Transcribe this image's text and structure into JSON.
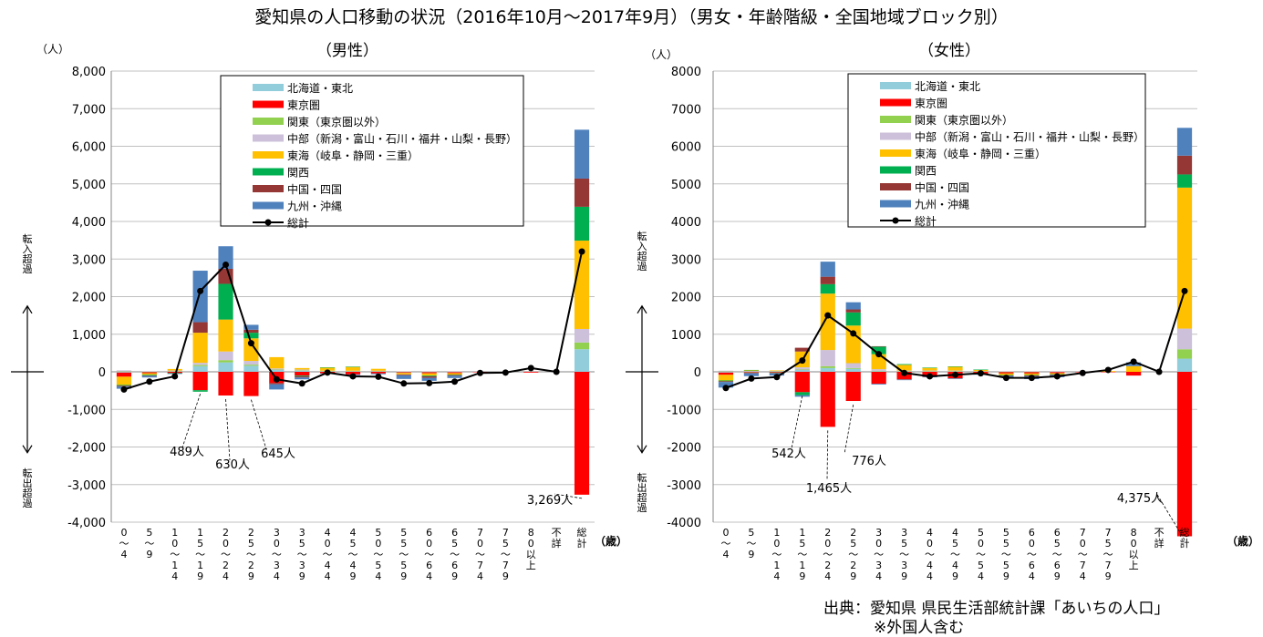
{
  "title": "愛知県の人口移動の状況（2016年10月～2017年9月）（男女・年齢階級・全国地域ブロック別）",
  "source_line1": "出典：愛知県 県民生活部統計課「あいちの人口」",
  "source_line2": "※外国人含む",
  "colors": {
    "hokkaido_tohoku": "#92cddc",
    "tokyo": "#ff0000",
    "kanto": "#92d050",
    "chubu": "#ccc0da",
    "tokai": "#ffc000",
    "kansai": "#00b050",
    "chugoku_shikoku": "#953735",
    "kyushu_okinawa": "#4f81bd",
    "total_line": "#000000"
  },
  "chart_data": [
    {
      "type": "bar",
      "stacked": true,
      "subtitle": "（男性）",
      "ylabel_unit": "（人）",
      "xlabel_unit": "（歳）",
      "in_label": "転入超過",
      "out_label": "転出超過",
      "ylim": [
        -4000,
        8000
      ],
      "ytick_labels": [
        "-4,000",
        "-3,000",
        "-2,000",
        "-1,000",
        "0",
        "1,000",
        "2,000",
        "3,000",
        "4,000",
        "5,000",
        "6,000",
        "7,000",
        "8,000"
      ],
      "categories": [
        "0～4",
        "5～9",
        "10～14",
        "15～19",
        "20～24",
        "25～29",
        "30～34",
        "35～39",
        "40～44",
        "45～49",
        "50～54",
        "55～59",
        "60～64",
        "65～69",
        "70～74",
        "75～79",
        "80以上",
        "不詳",
        "総計"
      ],
      "series": [
        {
          "name": "北海道・東北",
          "key": "hokkaido_tohoku",
          "values": [
            -20,
            -10,
            5,
            150,
            250,
            160,
            50,
            30,
            10,
            10,
            10,
            -10,
            -10,
            -10,
            0,
            0,
            0,
            0,
            600
          ]
        },
        {
          "name": "東京圏",
          "key": "tokyo",
          "values": [
            -110,
            -30,
            -25,
            -489,
            -630,
            -645,
            -300,
            -100,
            -40,
            -70,
            -40,
            -20,
            -30,
            -25,
            -5,
            -5,
            -20,
            0,
            -3269
          ]
        },
        {
          "name": "関東（東京圏以外）",
          "key": "kanto",
          "values": [
            10,
            5,
            10,
            30,
            60,
            30,
            10,
            10,
            10,
            10,
            10,
            10,
            10,
            0,
            0,
            0,
            0,
            0,
            180
          ]
        },
        {
          "name": "中部（新潟・富山・石川・福井・山梨・長野）",
          "key": "chubu",
          "values": [
            30,
            10,
            20,
            60,
            230,
            100,
            30,
            20,
            10,
            10,
            10,
            5,
            5,
            5,
            0,
            0,
            0,
            0,
            360
          ]
        },
        {
          "name": "東海（岐阜・静岡・三重）",
          "key": "tokai",
          "values": [
            -220,
            -40,
            40,
            800,
            850,
            600,
            300,
            40,
            80,
            100,
            50,
            -40,
            -60,
            -40,
            0,
            0,
            0,
            0,
            2350
          ]
        },
        {
          "name": "関西",
          "key": "kansai",
          "values": [
            -20,
            -20,
            -10,
            -40,
            950,
            150,
            0,
            -20,
            10,
            10,
            0,
            0,
            -20,
            -10,
            0,
            0,
            0,
            0,
            900
          ]
        },
        {
          "name": "中国・四国",
          "key": "chugoku_shikoku",
          "values": [
            -20,
            -10,
            -10,
            280,
            400,
            80,
            -30,
            -30,
            0,
            0,
            -5,
            -20,
            -40,
            -20,
            0,
            0,
            0,
            0,
            750
          ]
        },
        {
          "name": "九州・沖縄",
          "key": "kyushu_okinawa",
          "values": [
            -60,
            -40,
            -10,
            1370,
            600,
            130,
            -140,
            -50,
            -10,
            -20,
            -20,
            -100,
            -80,
            -60,
            0,
            0,
            0,
            0,
            1300
          ]
        }
      ],
      "total": {
        "name": "総計",
        "values": [
          -470,
          -260,
          -120,
          2150,
          2850,
          760,
          -200,
          -310,
          -20,
          -120,
          -130,
          -310,
          -300,
          -260,
          -30,
          -20,
          100,
          0,
          3200
        ]
      },
      "annotations": [
        {
          "text": "489人",
          "category": "15～19",
          "value": -489
        },
        {
          "text": "630人",
          "category": "20～24",
          "value": -630
        },
        {
          "text": "645人",
          "category": "25～29",
          "value": -645
        },
        {
          "text": "3,269人",
          "category": "総計",
          "value": -3269
        }
      ]
    },
    {
      "type": "bar",
      "stacked": true,
      "subtitle": "（女性）",
      "ylabel_unit": "（人）",
      "xlabel_unit": "（歳）",
      "in_label": "転入超過",
      "out_label": "転出超過",
      "ylim": [
        -4000,
        8000
      ],
      "ytick_labels": [
        "-4000",
        "-3000",
        "-2000",
        "-1000",
        "0",
        "1000",
        "2000",
        "3000",
        "4000",
        "5000",
        "6000",
        "7000",
        "8000"
      ],
      "categories": [
        "0～4",
        "5～9",
        "10～14",
        "15～19",
        "20～24",
        "25～29",
        "30～34",
        "35～39",
        "40～44",
        "45～49",
        "50～54",
        "55～59",
        "60～64",
        "65～69",
        "70～74",
        "75～79",
        "80以上",
        "不詳",
        "総計"
      ],
      "series": [
        {
          "name": "北海道・東北",
          "key": "hokkaido_tohoku",
          "values": [
            -20,
            -10,
            5,
            50,
            100,
            80,
            20,
            10,
            10,
            10,
            5,
            -5,
            -5,
            -5,
            0,
            0,
            0,
            0,
            350
          ]
        },
        {
          "name": "東京圏",
          "key": "tokyo",
          "values": [
            -60,
            -20,
            -20,
            -542,
            -1465,
            -776,
            -320,
            -200,
            -130,
            -170,
            -60,
            -40,
            -40,
            -30,
            -5,
            -5,
            -100,
            0,
            -4375
          ]
        },
        {
          "name": "関東（東京圏以外）",
          "key": "kanto",
          "values": [
            10,
            5,
            5,
            10,
            50,
            20,
            10,
            5,
            5,
            5,
            5,
            5,
            5,
            0,
            0,
            0,
            0,
            0,
            250
          ]
        },
        {
          "name": "中部（新潟・富山・石川・福井・山梨・長野）",
          "key": "chubu",
          "values": [
            20,
            20,
            20,
            60,
            430,
            130,
            40,
            20,
            20,
            20,
            10,
            10,
            10,
            5,
            0,
            0,
            0,
            0,
            550
          ]
        },
        {
          "name": "東海（岐阜・静岡・三重）",
          "key": "tokai",
          "values": [
            -150,
            20,
            10,
            420,
            1500,
            1000,
            400,
            150,
            70,
            100,
            30,
            -40,
            -40,
            -30,
            0,
            20,
            150,
            0,
            3750
          ]
        },
        {
          "name": "関西",
          "key": "kansai",
          "values": [
            -20,
            5,
            -10,
            -80,
            250,
            350,
            200,
            20,
            10,
            10,
            10,
            -10,
            -10,
            -10,
            0,
            0,
            0,
            0,
            350
          ]
        },
        {
          "name": "中国・四国",
          "key": "chugoku_shikoku",
          "values": [
            -20,
            -5,
            -10,
            100,
            200,
            80,
            10,
            -10,
            -5,
            -5,
            -5,
            -10,
            -20,
            -10,
            0,
            0,
            0,
            0,
            500
          ]
        },
        {
          "name": "九州・沖縄",
          "key": "kyushu_okinawa",
          "values": [
            -150,
            -80,
            -60,
            -40,
            400,
            190,
            -20,
            -10,
            -10,
            -5,
            -5,
            -50,
            -80,
            -60,
            0,
            0,
            100,
            0,
            740
          ]
        }
      ],
      "total": {
        "name": "総計",
        "values": [
          -430,
          -180,
          -140,
          300,
          1500,
          1020,
          470,
          -30,
          -120,
          -80,
          -40,
          -160,
          -160,
          -120,
          -30,
          50,
          270,
          0,
          2150
        ]
      },
      "annotations": [
        {
          "text": "542人",
          "category": "15～19",
          "value": -542
        },
        {
          "text": "1,465人",
          "category": "20～24",
          "value": -1465
        },
        {
          "text": "776人",
          "category": "25～29",
          "value": -776
        },
        {
          "text": "4,375人",
          "category": "総計",
          "value": -4375
        }
      ]
    }
  ]
}
